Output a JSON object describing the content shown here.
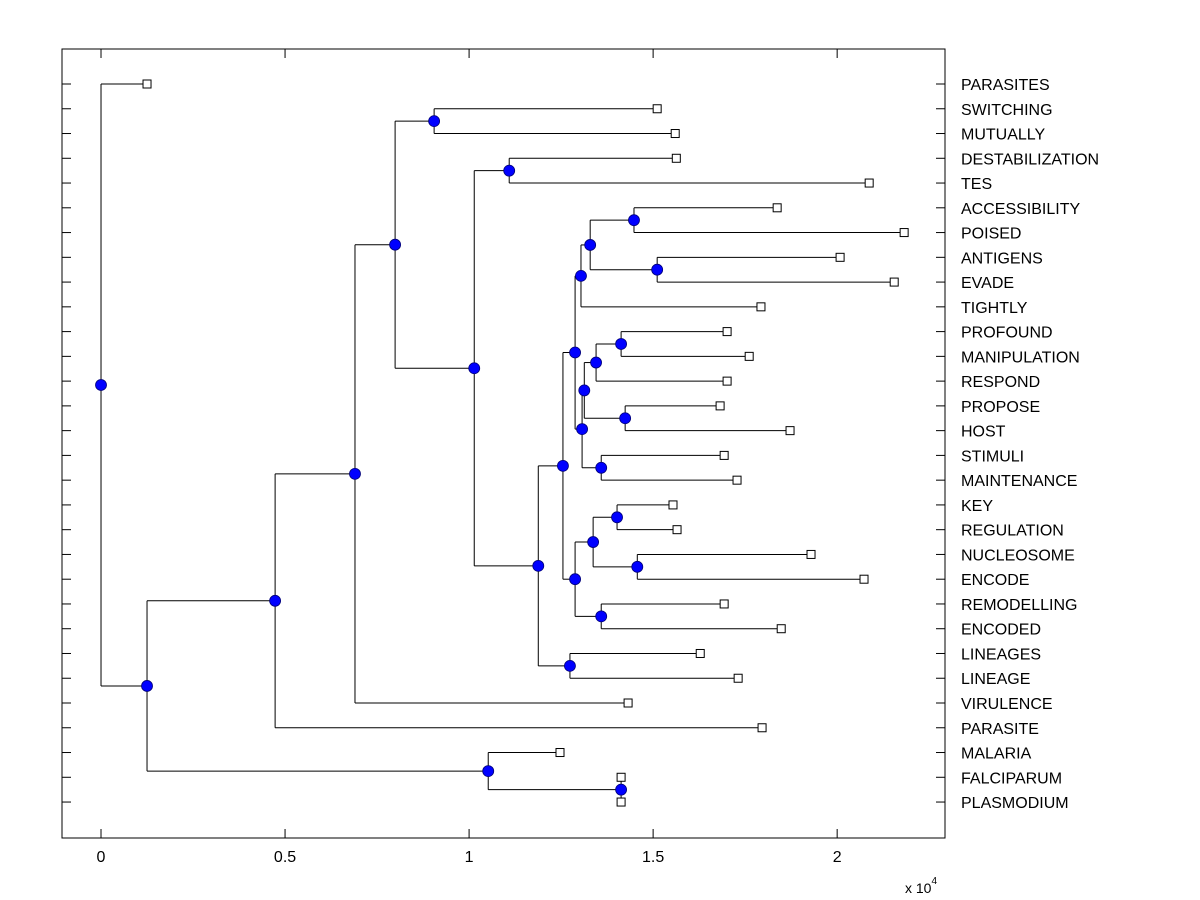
{
  "chart_data": {
    "type": "dendrogram",
    "title": "",
    "xlabel": "",
    "ylabel": "",
    "x_multiplier_label": "x 10",
    "x_multiplier_exponent": "4",
    "xlim": [
      -0.106,
      2.293
    ],
    "x_ticks": [
      {
        "value": 0,
        "label": "0"
      },
      {
        "value": 0.5,
        "label": "0.5"
      },
      {
        "value": 1,
        "label": "1"
      },
      {
        "value": 1.5,
        "label": "1.5"
      },
      {
        "value": 2,
        "label": "2"
      }
    ],
    "grid": false,
    "colors": {
      "node_fill": "#0000ff",
      "line": "#000000",
      "leaf_fill": "#ffffff"
    },
    "leaves": [
      {
        "id": "PARASITES",
        "label": "PARASITES",
        "x": 0.125
      },
      {
        "id": "SWITCHING",
        "label": "SWITCHING",
        "x": 1.511
      },
      {
        "id": "MUTUALLY",
        "label": "MUTUALLY",
        "x": 1.56
      },
      {
        "id": "DESTABILIZATION",
        "label": "DESTABILIZATION",
        "x": 1.563
      },
      {
        "id": "TES",
        "label": "TES",
        "x": 2.087
      },
      {
        "id": "ACCESSIBILITY",
        "label": "ACCESSIBILITY",
        "x": 1.837
      },
      {
        "id": "POISED",
        "label": "POISED",
        "x": 2.182
      },
      {
        "id": "ANTIGENS",
        "label": "ANTIGENS",
        "x": 2.008
      },
      {
        "id": "EVADE",
        "label": "EVADE",
        "x": 2.155
      },
      {
        "id": "TIGHTLY",
        "label": "TIGHTLY",
        "x": 1.793
      },
      {
        "id": "PROFOUND",
        "label": "PROFOUND",
        "x": 1.701
      },
      {
        "id": "MANIPULATION",
        "label": "MANIPULATION",
        "x": 1.761
      },
      {
        "id": "RESPOND",
        "label": "RESPOND",
        "x": 1.701
      },
      {
        "id": "PROPOSE",
        "label": "PROPOSE",
        "x": 1.682
      },
      {
        "id": "HOST",
        "label": "HOST",
        "x": 1.872
      },
      {
        "id": "STIMULI",
        "label": "STIMULI",
        "x": 1.693
      },
      {
        "id": "MAINTENANCE",
        "label": "MAINTENANCE",
        "x": 1.728
      },
      {
        "id": "KEY",
        "label": "KEY",
        "x": 1.554
      },
      {
        "id": "REGULATION",
        "label": "REGULATION",
        "x": 1.565
      },
      {
        "id": "NUCLEOSOME",
        "label": "NUCLEOSOME",
        "x": 1.929
      },
      {
        "id": "ENCODE",
        "label": "ENCODE",
        "x": 2.073
      },
      {
        "id": "REMODELLING",
        "label": "REMODELLING",
        "x": 1.693
      },
      {
        "id": "ENCODED",
        "label": "ENCODED",
        "x": 1.848
      },
      {
        "id": "LINEAGES",
        "label": "LINEAGES",
        "x": 1.628
      },
      {
        "id": "LINEAGE",
        "label": "LINEAGE",
        "x": 1.731
      },
      {
        "id": "VIRULENCE",
        "label": "VIRULENCE",
        "x": 1.432
      },
      {
        "id": "PARASITE",
        "label": "PARASITE",
        "x": 1.796
      },
      {
        "id": "MALARIA",
        "label": "MALARIA",
        "x": 1.247
      },
      {
        "id": "FALCIPARUM",
        "label": "FALCIPARUM",
        "x": 1.413
      },
      {
        "id": "PLASMODIUM",
        "label": "PLASMODIUM",
        "x": 1.413
      }
    ],
    "nodes": [
      {
        "id": "n_acc_poi",
        "x": 1.448,
        "children": [
          "ACCESSIBILITY",
          "POISED"
        ]
      },
      {
        "id": "n_ant_eva",
        "x": 1.511,
        "children": [
          "ANTIGENS",
          "EVADE"
        ]
      },
      {
        "id": "n_A",
        "x": 1.329,
        "children": [
          "n_acc_poi",
          "n_ant_eva"
        ]
      },
      {
        "id": "n_B",
        "x": 1.304,
        "children": [
          "n_A",
          "TIGHTLY"
        ]
      },
      {
        "id": "n_pro_man",
        "x": 1.413,
        "children": [
          "PROFOUND",
          "MANIPULATION"
        ]
      },
      {
        "id": "n_E",
        "x": 1.345,
        "children": [
          "n_pro_man",
          "RESPOND"
        ]
      },
      {
        "id": "n_pro_hos",
        "x": 1.424,
        "children": [
          "PROPOSE",
          "HOST"
        ]
      },
      {
        "id": "n_F",
        "x": 1.313,
        "children": [
          "n_E",
          "n_pro_hos"
        ]
      },
      {
        "id": "n_sti_mai",
        "x": 1.359,
        "children": [
          "STIMULI",
          "MAINTENANCE"
        ]
      },
      {
        "id": "n_D",
        "x": 1.307,
        "children": [
          "n_F",
          "n_sti_mai"
        ]
      },
      {
        "id": "n_C",
        "x": 1.288,
        "children": [
          "n_B",
          "n_D"
        ]
      },
      {
        "id": "n_key_reg",
        "x": 1.402,
        "children": [
          "KEY",
          "REGULATION"
        ]
      },
      {
        "id": "n_nuc_enc",
        "x": 1.457,
        "children": [
          "NUCLEOSOME",
          "ENCODE"
        ]
      },
      {
        "id": "n_J",
        "x": 1.337,
        "children": [
          "n_key_reg",
          "n_nuc_enc"
        ]
      },
      {
        "id": "n_rem_enc",
        "x": 1.359,
        "children": [
          "REMODELLING",
          "ENCODED"
        ]
      },
      {
        "id": "n_I",
        "x": 1.288,
        "children": [
          "n_J",
          "n_rem_enc"
        ]
      },
      {
        "id": "n_H",
        "x": 1.255,
        "children": [
          "n_C",
          "n_I"
        ]
      },
      {
        "id": "n_lin",
        "x": 1.274,
        "children": [
          "LINEAGES",
          "LINEAGE"
        ]
      },
      {
        "id": "n_N",
        "x": 1.188,
        "children": [
          "n_H",
          "n_lin"
        ]
      },
      {
        "id": "n_des_tes",
        "x": 1.109,
        "children": [
          "DESTABILIZATION",
          "TES"
        ]
      },
      {
        "id": "n_P",
        "x": 1.014,
        "children": [
          "n_des_tes",
          "n_N"
        ]
      },
      {
        "id": "n_swi_mut",
        "x": 0.905,
        "children": [
          "SWITCHING",
          "MUTUALLY"
        ]
      },
      {
        "id": "n_R",
        "x": 0.799,
        "children": [
          "n_swi_mut",
          "n_P"
        ]
      },
      {
        "id": "n_T",
        "x": 0.69,
        "children": [
          "n_R",
          "VIRULENCE"
        ]
      },
      {
        "id": "n_U",
        "x": 0.473,
        "children": [
          "n_T",
          "PARASITE"
        ]
      },
      {
        "id": "n_fal_pla",
        "x": 1.413,
        "children": [
          "FALCIPARUM",
          "PLASMODIUM"
        ]
      },
      {
        "id": "n_W",
        "x": 1.052,
        "children": [
          "MALARIA",
          "n_fal_pla"
        ]
      },
      {
        "id": "n_V",
        "x": 0.125,
        "children": [
          "n_U",
          "n_W"
        ]
      },
      {
        "id": "n_root",
        "x": 0.0,
        "children": [
          "PARASITES",
          "n_V"
        ]
      }
    ]
  }
}
